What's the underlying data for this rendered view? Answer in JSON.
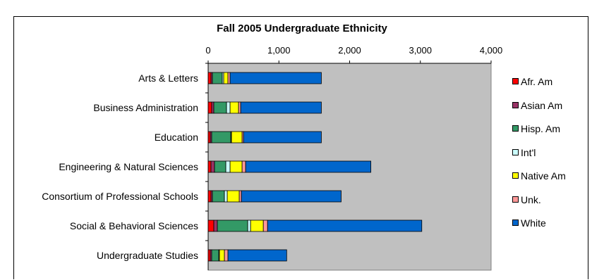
{
  "chart_data": {
    "type": "bar",
    "orientation": "horizontal",
    "stacked": true,
    "title": "Fall 2005 Undergraduate Ethnicity",
    "xlabel": "",
    "ylabel": "",
    "xlim": [
      0,
      4000
    ],
    "x_ticks": [
      0,
      1000,
      2000,
      3000,
      4000
    ],
    "x_tick_labels": [
      "0",
      "1,000",
      "2,000",
      "3,000",
      "4,000"
    ],
    "x_axis_position": "top",
    "plot_background": "#c0c0c0",
    "grid": false,
    "legend_position": "right",
    "categories": [
      "Arts & Letters",
      "Business Administration",
      "Education",
      "Engineering & Natural Sciences",
      "Consortium of Professional Schools",
      "Social & Behavioral Sciences",
      "Undergraduate Studies"
    ],
    "series": [
      {
        "name": "Afr. Am",
        "color": "#ff0000",
        "values": [
          40,
          50,
          30,
          40,
          40,
          80,
          30
        ]
      },
      {
        "name": "Asian Am",
        "color": "#993366",
        "values": [
          20,
          30,
          20,
          50,
          20,
          50,
          20
        ]
      },
      {
        "name": "Hisp. Am",
        "color": "#339966",
        "values": [
          140,
          180,
          270,
          160,
          170,
          430,
          100
        ]
      },
      {
        "name": "Int'l",
        "color": "#ccffff",
        "values": [
          20,
          50,
          10,
          60,
          40,
          40,
          10
        ]
      },
      {
        "name": "Native Am",
        "color": "#ffff00",
        "values": [
          60,
          120,
          150,
          170,
          170,
          180,
          70
        ]
      },
      {
        "name": "Unk.",
        "color": "#ff9999",
        "values": [
          30,
          30,
          20,
          50,
          30,
          60,
          50
        ]
      },
      {
        "name": "White",
        "color": "#0066cc",
        "values": [
          1290,
          1140,
          1100,
          1770,
          1410,
          2180,
          830
        ]
      }
    ]
  }
}
